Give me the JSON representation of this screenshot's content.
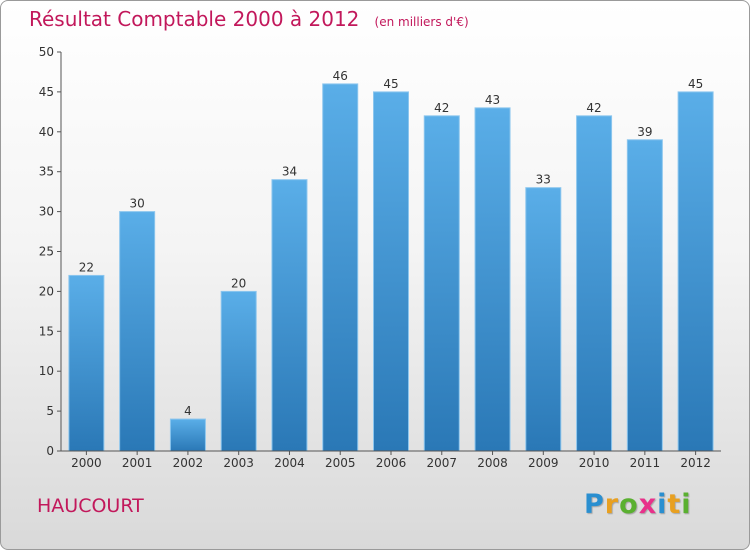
{
  "chart_data": {
    "type": "bar",
    "title": "Résultat Comptable 2000 à 2012",
    "subtitle": "(en milliers d'€)",
    "categories": [
      "2000",
      "2001",
      "2002",
      "2003",
      "2004",
      "2005",
      "2006",
      "2007",
      "2008",
      "2009",
      "2010",
      "2011",
      "2012"
    ],
    "values": [
      22,
      30,
      4,
      20,
      34,
      46,
      45,
      42,
      43,
      33,
      42,
      39,
      45
    ],
    "ylim": [
      0,
      50
    ],
    "yticks": [
      0,
      5,
      10,
      15,
      20,
      25,
      30,
      35,
      40,
      45,
      50
    ],
    "xlabel": "",
    "ylabel": "",
    "grid": false,
    "bar_color_top": "#5aaee8",
    "bar_color_bottom": "#2a78b6"
  },
  "footer": {
    "commune": "HAUCOURT",
    "logo_letters": [
      {
        "ch": "P",
        "color": "#2a8fd0"
      },
      {
        "ch": "r",
        "color": "#e8a020"
      },
      {
        "ch": "o",
        "color": "#5ab030"
      },
      {
        "ch": "x",
        "color": "#e8308a"
      },
      {
        "ch": "i",
        "color": "#2a8fd0"
      },
      {
        "ch": "t",
        "color": "#e8a020"
      },
      {
        "ch": "i",
        "color": "#5ab030"
      }
    ]
  },
  "colors": {
    "title": "#c2185b",
    "axis": "#555555"
  }
}
